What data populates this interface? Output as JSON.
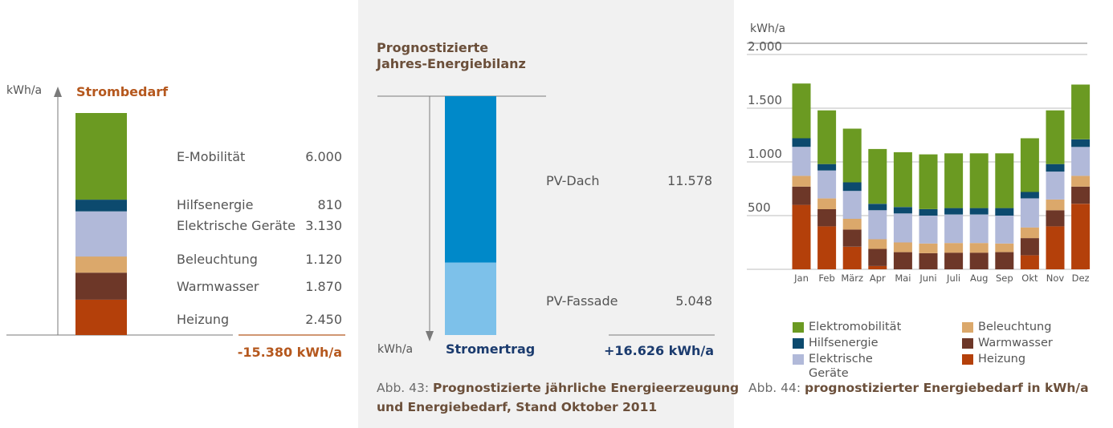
{
  "colors": {
    "green": "#6b9a22",
    "darkblue": "#0c4a6e",
    "lightblue": "#b1b9d9",
    "tan": "#dba86b",
    "brown": "#6d3728",
    "orange": "#b4400a",
    "blue": "#0089c9",
    "paleblue": "#7dc1ea",
    "title_brown": "#6b4f3a",
    "demand_orange": "#b5581e",
    "navy": "#1b3b6e"
  },
  "left": {
    "unit": "kWh/a",
    "title": "Strombedarf",
    "items": [
      {
        "label": "E-Mobilität",
        "value": "6.000"
      },
      {
        "label": "Hilfsenergie",
        "value": "810"
      },
      {
        "label": "Elektrische Geräte",
        "value": "3.130"
      },
      {
        "label": "Beleuchtung",
        "value": "1.120"
      },
      {
        "label": "Warmwasser",
        "value": "1.870"
      },
      {
        "label": "Heizung",
        "value": "2.450"
      }
    ],
    "total": "-15.380 kWh/a"
  },
  "middle": {
    "title_line1": "Prognostizierte",
    "title_line2": "Jahres-Energiebilanz",
    "unit": "kWh/a",
    "bar_label": "Stromertrag",
    "items": [
      {
        "label": "PV-Dach",
        "value": "11.578"
      },
      {
        "label": "PV-Fassade",
        "value": "5.048"
      }
    ],
    "total": "+16.626 kWh/a",
    "caption_prefix": "Abb. 43:",
    "caption_bold_line1": "Prognostizierte jährliche Energieerzeugung",
    "caption_bold_line2": "und Energiebedarf, Stand Oktober 2011"
  },
  "right": {
    "caption_prefix": "Abb. 44:",
    "caption_bold": "prognostizierter Energiebedarf in kWh/a",
    "legend": [
      "Elektromobilität",
      "Hilfsenergie",
      "Elektrische Geräte",
      "Beleuchtung",
      "Warmwasser",
      "Heizung"
    ]
  },
  "chart_data": [
    {
      "type": "bar",
      "title": "Strombedarf",
      "ylabel": "kWh/a",
      "categories": [
        "Strombedarf"
      ],
      "series": [
        {
          "name": "Heizung",
          "values": [
            2450
          ]
        },
        {
          "name": "Warmwasser",
          "values": [
            1870
          ]
        },
        {
          "name": "Beleuchtung",
          "values": [
            1120
          ]
        },
        {
          "name": "Elektrische Geräte",
          "values": [
            3130
          ]
        },
        {
          "name": "Hilfsenergie",
          "values": [
            810
          ]
        },
        {
          "name": "E-Mobilität",
          "values": [
            6000
          ]
        }
      ],
      "total": -15380
    },
    {
      "type": "bar",
      "title": "Prognostizierte Jahres-Energiebilanz",
      "ylabel": "kWh/a",
      "categories": [
        "Stromertrag"
      ],
      "series": [
        {
          "name": "PV-Dach",
          "values": [
            11578
          ]
        },
        {
          "name": "PV-Fassade",
          "values": [
            5048
          ]
        }
      ],
      "total": 16626
    },
    {
      "type": "bar",
      "title": "prognostizierter Energiebedarf in kWh/a",
      "ylabel": "kWh/a",
      "ylim": [
        0,
        2000
      ],
      "yticks": [
        500,
        1000,
        1500,
        2000
      ],
      "ytick_labels": [
        "500",
        "1.000",
        "1.500",
        "2.000"
      ],
      "categories": [
        "Jan",
        "Feb",
        "März",
        "Apr",
        "Mai",
        "Juni",
        "Juli",
        "Aug",
        "Sep",
        "Okt",
        "Nov",
        "Dez"
      ],
      "series": [
        {
          "name": "Heizung",
          "values": [
            600,
            400,
            210,
            30,
            0,
            0,
            0,
            0,
            0,
            130,
            400,
            610
          ]
        },
        {
          "name": "Warmwasser",
          "values": [
            170,
            160,
            160,
            160,
            160,
            150,
            155,
            155,
            160,
            160,
            150,
            160
          ]
        },
        {
          "name": "Beleuchtung",
          "values": [
            100,
            100,
            100,
            90,
            90,
            90,
            90,
            90,
            80,
            100,
            100,
            100
          ]
        },
        {
          "name": "Elektrische Geräte",
          "values": [
            270,
            260,
            260,
            270,
            270,
            260,
            265,
            265,
            260,
            270,
            260,
            270
          ]
        },
        {
          "name": "Hilfsenergie",
          "values": [
            80,
            60,
            80,
            60,
            60,
            60,
            60,
            60,
            70,
            60,
            70,
            70
          ]
        },
        {
          "name": "Elektromobilität",
          "values": [
            510,
            500,
            500,
            510,
            510,
            510,
            510,
            510,
            510,
            500,
            500,
            510
          ]
        }
      ]
    }
  ]
}
